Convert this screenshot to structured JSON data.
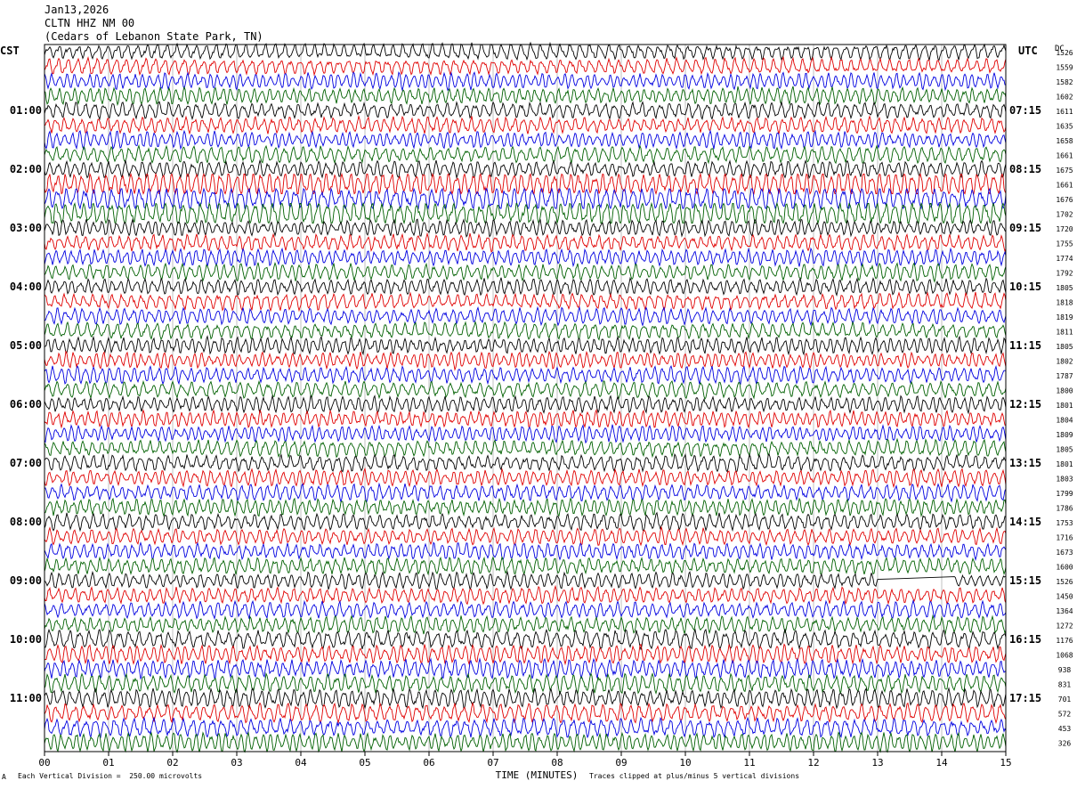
{
  "header": {
    "date": "Jan13,2026",
    "station": "CLTN HHZ NM 00",
    "location": "(Cedars of Lebanon State Park, TN)"
  },
  "left_tz": "CST",
  "right_tz": "UTC",
  "dc_label": "DC",
  "footer": {
    "scale": "Each Vertical Division =  250.00 microvolts",
    "clip": "Traces clipped at plus/minus 5 vertical divisions",
    "corner": "A"
  },
  "colors": {
    "cycle": [
      "#000000",
      "#e00000",
      "#0000e0",
      "#006000"
    ]
  },
  "chart_data": {
    "type": "line",
    "title": "Jan13,2026 CLTN HHZ NM 00 (Cedars of Lebanon State Park, TN)",
    "xlabel": "TIME (MINUTES)",
    "x_ticks": [
      "00",
      "01",
      "02",
      "03",
      "04",
      "05",
      "06",
      "07",
      "08",
      "09",
      "10",
      "11",
      "12",
      "13",
      "14",
      "15"
    ],
    "xlim": [
      0,
      15
    ],
    "left_hour_labels": [
      "01:00",
      "02:00",
      "03:00",
      "04:00",
      "05:00",
      "06:00",
      "07:00",
      "08:00",
      "09:00",
      "10:00",
      "11:00"
    ],
    "right_hour_labels": [
      "07:15",
      "08:15",
      "09:15",
      "10:15",
      "11:15",
      "12:15",
      "13:15",
      "14:15",
      "15:15",
      "16:15",
      "17:15"
    ],
    "dc_offsets": [
      1526,
      1559,
      1582,
      1602,
      1611,
      1635,
      1658,
      1661,
      1675,
      1661,
      1676,
      1702,
      1720,
      1755,
      1774,
      1792,
      1805,
      1818,
      1819,
      1811,
      1805,
      1802,
      1787,
      1800,
      1801,
      1804,
      1809,
      1805,
      1801,
      1803,
      1799,
      1786,
      1753,
      1716,
      1673,
      1600,
      1526,
      1450,
      1364,
      1272,
      1176,
      1068,
      938,
      831,
      701,
      572,
      453,
      326
    ],
    "traces_per_hour": 4,
    "minutes_per_trace": 15,
    "grid": true
  }
}
